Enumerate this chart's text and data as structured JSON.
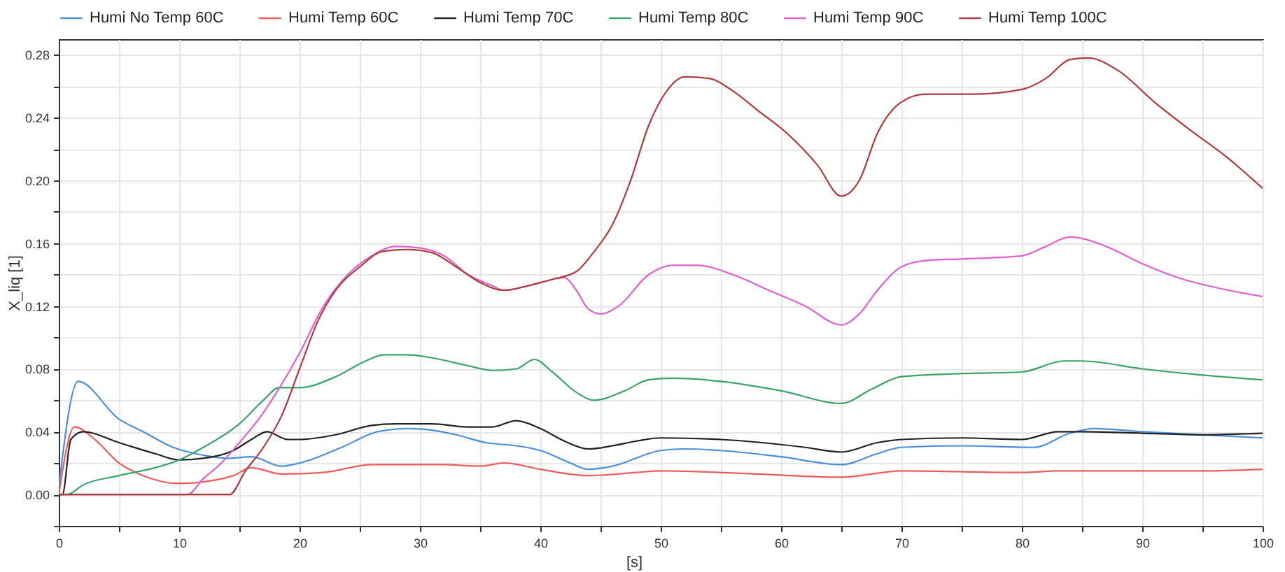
{
  "chart_data": {
    "type": "line",
    "xlabel": "[s]",
    "ylabel": "X_liq [1]",
    "xlim": [
      0,
      100
    ],
    "ylim": [
      -0.02,
      0.29
    ],
    "xticks": [
      0,
      {
        "value": 5,
        "label": null
      },
      10,
      {
        "value": 15,
        "label": null
      },
      20,
      {
        "value": 25,
        "label": null
      },
      30,
      {
        "value": 35,
        "label": null
      },
      40,
      {
        "value": 45,
        "label": null
      },
      50,
      {
        "value": 55,
        "label": null
      },
      60,
      {
        "value": 65,
        "label": null
      },
      70,
      {
        "value": 75,
        "label": null
      },
      80,
      {
        "value": 85,
        "label": null
      },
      90,
      {
        "value": 95,
        "label": null
      },
      100
    ],
    "yticks": [
      {
        "value": -0.02,
        "label": null
      },
      {
        "value": 0,
        "label": "0.00"
      },
      {
        "value": 0.02,
        "label": null
      },
      {
        "value": 0.04,
        "label": "0.04"
      },
      {
        "value": 0.06,
        "label": null
      },
      {
        "value": 0.08,
        "label": "0.08"
      },
      {
        "value": 0.1,
        "label": null
      },
      {
        "value": 0.12,
        "label": "0.12"
      },
      {
        "value": 0.14,
        "label": null
      },
      {
        "value": 0.16,
        "label": "0.16"
      },
      {
        "value": 0.18,
        "label": null
      },
      {
        "value": 0.2,
        "label": "0.20"
      },
      {
        "value": 0.22,
        "label": null
      },
      {
        "value": 0.24,
        "label": "0.24"
      },
      {
        "value": 0.26,
        "label": null
      },
      {
        "value": 0.28,
        "label": "0.28"
      }
    ],
    "grid": true,
    "legend": "top",
    "line_style": "solid",
    "marker": "none",
    "series": [
      {
        "name": "Humi No Temp 60C",
        "color": "#4a8fdc",
        "x": [
          0,
          1.6,
          5,
          7,
          9.5,
          12,
          14,
          16,
          18.5,
          20,
          23.5,
          26.5,
          29,
          31,
          33,
          35.5,
          38,
          40,
          42.5,
          44,
          46,
          50,
          52,
          55,
          60,
          65,
          68,
          70,
          75,
          81,
          84,
          86,
          90,
          95,
          100
        ],
        "values": [
          0.005,
          0.072,
          0.048,
          0.04,
          0.03,
          0.025,
          0.023,
          0.024,
          0.018,
          0.02,
          0.03,
          0.04,
          0.042,
          0.041,
          0.038,
          0.033,
          0.031,
          0.028,
          0.02,
          0.016,
          0.018,
          0.028,
          0.029,
          0.028,
          0.024,
          0.019,
          0.026,
          0.03,
          0.031,
          0.03,
          0.039,
          0.042,
          0.04,
          0.038,
          0.036
        ]
      },
      {
        "name": "Humi Temp 60C",
        "color": "#f25a5a",
        "x": [
          0,
          1.3,
          3,
          5,
          7,
          10,
          12,
          14.5,
          16,
          18.5,
          22,
          26,
          32,
          35,
          37,
          40,
          44,
          48,
          50,
          58,
          65,
          70,
          80,
          83,
          95,
          100
        ],
        "values": [
          0,
          0.043,
          0.035,
          0.02,
          0.012,
          0.007,
          0.008,
          0.012,
          0.017,
          0.013,
          0.014,
          0.019,
          0.019,
          0.018,
          0.02,
          0.016,
          0.012,
          0.014,
          0.015,
          0.013,
          0.011,
          0.015,
          0.014,
          0.015,
          0.015,
          0.016
        ]
      },
      {
        "name": "Humi Temp 70C",
        "color": "#222222",
        "x": [
          0,
          0.3,
          1,
          2,
          5,
          8,
          10,
          12,
          14.5,
          16,
          17.3,
          19,
          20,
          23,
          26,
          28,
          31,
          34,
          36,
          38,
          40,
          42,
          44,
          46,
          48,
          50,
          55,
          62,
          65,
          68,
          70,
          75,
          80,
          83,
          85,
          90,
          95,
          100
        ],
        "values": [
          0,
          0,
          0.035,
          0.04,
          0.033,
          0.026,
          0.022,
          0.023,
          0.028,
          0.035,
          0.04,
          0.035,
          0.035,
          0.038,
          0.044,
          0.045,
          0.045,
          0.043,
          0.043,
          0.047,
          0.042,
          0.034,
          0.029,
          0.031,
          0.034,
          0.036,
          0.035,
          0.03,
          0.027,
          0.033,
          0.035,
          0.036,
          0.035,
          0.04,
          0.04,
          0.039,
          0.038,
          0.039
        ]
      },
      {
        "name": "Humi Temp 80C",
        "color": "#3aa36a",
        "x": [
          0,
          0.7,
          2,
          5,
          8,
          10,
          12,
          15,
          17,
          18.3,
          20,
          23,
          25.5,
          27,
          29,
          31,
          34,
          36,
          38,
          39.5,
          41,
          43,
          44.5,
          47,
          49,
          51,
          55,
          60,
          65,
          67.5,
          70,
          75,
          80,
          83.5,
          85,
          90,
          95,
          100
        ],
        "values": [
          0,
          0,
          0.006,
          0.012,
          0.017,
          0.022,
          0.03,
          0.045,
          0.06,
          0.068,
          0.068,
          0.075,
          0.085,
          0.089,
          0.089,
          0.087,
          0.082,
          0.079,
          0.08,
          0.086,
          0.078,
          0.065,
          0.06,
          0.066,
          0.073,
          0.074,
          0.072,
          0.066,
          0.058,
          0.067,
          0.075,
          0.077,
          0.078,
          0.085,
          0.085,
          0.08,
          0.076,
          0.073
        ]
      },
      {
        "name": "Humi Temp 90C",
        "color": "#e060d0",
        "x": [
          0,
          10.7,
          12,
          13.5,
          15,
          16.8,
          18.5,
          20,
          22,
          24,
          26,
          28,
          30,
          32,
          34,
          36,
          37,
          38.5,
          40,
          42,
          43,
          44,
          45,
          46.5,
          49,
          51,
          53,
          56,
          59,
          62,
          65,
          66.5,
          68,
          70,
          72,
          75,
          80,
          82,
          84,
          85,
          87,
          90,
          93,
          96,
          100
        ],
        "values": [
          0,
          0,
          0.01,
          0.02,
          0.033,
          0.05,
          0.07,
          0.09,
          0.12,
          0.14,
          0.152,
          0.158,
          0.157,
          0.152,
          0.14,
          0.133,
          0.13,
          0.132,
          0.135,
          0.138,
          0.13,
          0.118,
          0.115,
          0.12,
          0.14,
          0.146,
          0.146,
          0.14,
          0.13,
          0.12,
          0.108,
          0.115,
          0.13,
          0.145,
          0.149,
          0.15,
          0.152,
          0.158,
          0.164,
          0.163,
          0.158,
          0.147,
          0.138,
          0.132,
          0.126
        ]
      },
      {
        "name": "Humi Temp 100C",
        "color": "#b03a3a",
        "x": [
          0,
          14.2,
          15.5,
          17,
          18.5,
          20,
          21.5,
          23,
          25,
          27,
          29,
          31,
          33,
          35,
          37,
          39,
          41,
          43,
          44.5,
          46,
          47.5,
          49,
          50.5,
          52,
          54,
          56,
          58,
          60.5,
          63,
          65,
          66.5,
          68,
          70,
          72,
          76,
          80,
          82,
          84,
          85.5,
          88,
          91,
          94,
          97,
          100
        ],
        "values": [
          0,
          0,
          0.015,
          0.03,
          0.05,
          0.08,
          0.11,
          0.13,
          0.145,
          0.155,
          0.156,
          0.154,
          0.145,
          0.135,
          0.13,
          0.133,
          0.137,
          0.142,
          0.155,
          0.172,
          0.2,
          0.235,
          0.257,
          0.266,
          0.265,
          0.257,
          0.245,
          0.23,
          0.21,
          0.19,
          0.2,
          0.23,
          0.25,
          0.255,
          0.255,
          0.258,
          0.265,
          0.277,
          0.278,
          0.27,
          0.25,
          0.232,
          0.215,
          0.195
        ]
      }
    ]
  }
}
